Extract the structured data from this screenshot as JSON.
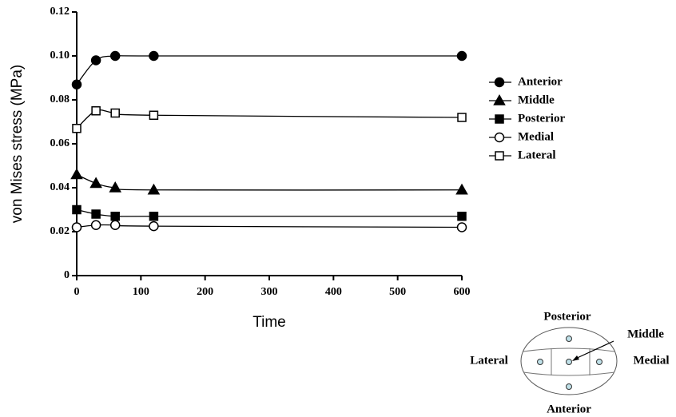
{
  "chart_data": {
    "type": "line",
    "x_label": "Time",
    "y_label": "von Mises stress (MPa)",
    "x": [
      0,
      30,
      60,
      120,
      600
    ],
    "series": [
      {
        "name": "Anterior",
        "color": "#000000",
        "marker": "circle",
        "filled": true,
        "values": [
          0.087,
          0.098,
          0.1,
          0.1,
          0.1
        ]
      },
      {
        "name": "Middle",
        "color": "#000000",
        "marker": "triangle",
        "filled": true,
        "values": [
          0.046,
          0.042,
          0.04,
          0.039,
          0.039
        ]
      },
      {
        "name": "Posterior",
        "color": "#000000",
        "marker": "square",
        "filled": true,
        "values": [
          0.03,
          0.028,
          0.027,
          0.027,
          0.027
        ]
      },
      {
        "name": "Medial",
        "color": "#000000",
        "marker": "circle",
        "filled": false,
        "values": [
          0.022,
          0.023,
          0.023,
          0.0225,
          0.022
        ]
      },
      {
        "name": "Lateral",
        "color": "#000000",
        "marker": "square",
        "filled": false,
        "values": [
          0.067,
          0.075,
          0.074,
          0.073,
          0.072
        ]
      }
    ],
    "xlim": [
      0,
      600
    ],
    "xticks": [
      0,
      100,
      200,
      300,
      400,
      500,
      600
    ],
    "ylim": [
      0,
      0.12
    ],
    "yticks": [
      0,
      0.02,
      0.04,
      0.06,
      0.08,
      {
        "value": 0.1,
        "label": "0.10"
      },
      0.12
    ],
    "grid": false,
    "legend": "right"
  },
  "diagram": {
    "labels": {
      "top": "Posterior",
      "center": "Middle",
      "left": "Lateral",
      "right": "Medial",
      "bottom": "Anterior"
    }
  }
}
